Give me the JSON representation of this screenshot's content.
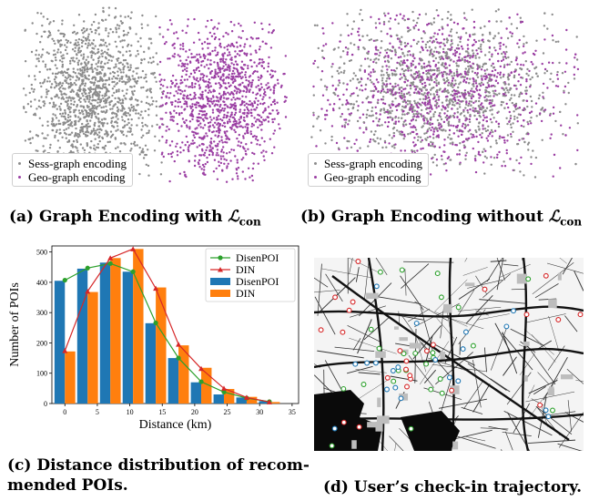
{
  "panels": {
    "a": {
      "caption_prefix": "(a) Graph Encoding with ",
      "caption_math": "ℒ",
      "caption_sub": "con",
      "legend": [
        "Sess-graph encoding",
        "Geo-graph encoding"
      ]
    },
    "b": {
      "caption_prefix": "(b) Graph Encoding without ",
      "caption_math": "ℒ",
      "caption_sub": "con",
      "legend": [
        "Sess-graph encoding",
        "Geo-graph encoding"
      ]
    },
    "c": {
      "caption_line1": "(c) Distance distribution of recom-",
      "caption_line2": "mended POIs."
    },
    "d": {
      "caption": "(d) User’s check-in trajectory."
    }
  },
  "colors": {
    "sess": "#8c8c8c",
    "geo": "#9b3fa3",
    "disenpoi_line": "#2ca02c",
    "din_line": "#d62728",
    "disenpoi_bar": "#1f77b4",
    "din_bar": "#ff7f0e"
  },
  "chart_data": {
    "type": "bar",
    "xlabel": "Distance (km)",
    "ylabel": "Number of POIs",
    "xlim": [
      -2,
      36
    ],
    "ylim": [
      0,
      520
    ],
    "xticks": [
      0,
      5,
      10,
      15,
      20,
      25,
      30,
      35
    ],
    "yticks": [
      0,
      100,
      200,
      300,
      400,
      500
    ],
    "x": [
      0,
      3.5,
      7,
      10.5,
      14,
      17.5,
      21,
      24.5,
      28,
      31.5
    ],
    "series": [
      {
        "name": "DisenPOI",
        "kind": "bar",
        "values": [
          405,
          445,
          465,
          435,
          265,
          150,
          70,
          30,
          20,
          8
        ]
      },
      {
        "name": "DIN",
        "kind": "bar",
        "values": [
          172,
          368,
          480,
          510,
          383,
          192,
          118,
          48,
          22,
          5
        ]
      },
      {
        "name": "DisenPOI",
        "kind": "line",
        "values": [
          407,
          447,
          462,
          435,
          266,
          150,
          72,
          38,
          18,
          6
        ]
      },
      {
        "name": "DIN",
        "kind": "line",
        "values": [
          174,
          370,
          480,
          510,
          380,
          195,
          115,
          50,
          20,
          5
        ]
      }
    ],
    "legend_position": "upper-right",
    "legend": [
      "DisenPOI",
      "DIN",
      "DisenPOI",
      "DIN"
    ]
  }
}
